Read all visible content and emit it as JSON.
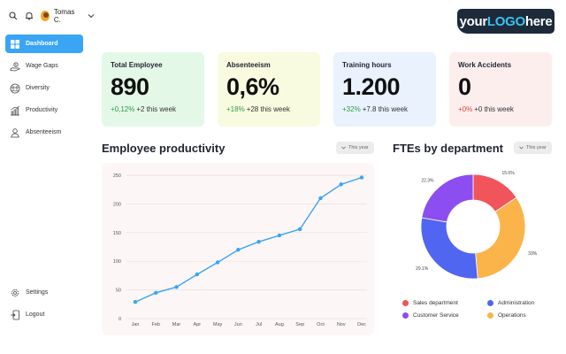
{
  "user": {
    "name": "Tomas C."
  },
  "logo": {
    "part1": "your",
    "part2": "LOGO",
    "part3": "here"
  },
  "sidebar": {
    "items": [
      {
        "label": "Dashboard",
        "icon": "dashboard-icon",
        "active": true
      },
      {
        "label": "Wage Gaps",
        "icon": "wage-gaps-icon",
        "active": false
      },
      {
        "label": "Diversity",
        "icon": "diversity-icon",
        "active": false
      },
      {
        "label": "Productivity",
        "icon": "productivity-icon",
        "active": false
      },
      {
        "label": "Absenteeism",
        "icon": "absenteeism-icon",
        "active": false
      }
    ],
    "bottom": [
      {
        "label": "Settings",
        "icon": "settings-icon"
      },
      {
        "label": "Logout",
        "icon": "logout-icon"
      }
    ]
  },
  "cards": [
    {
      "title": "Total Employee",
      "value": "890",
      "pct": "+0,12%",
      "delta": "+2 this week",
      "bg": "#e4f8e8",
      "trend": "pos"
    },
    {
      "title": "Absenteeism",
      "value": "0,6%",
      "pct": "+18%",
      "delta": "+28 this week",
      "bg": "#f8fbdf",
      "trend": "pos"
    },
    {
      "title": "Training hours",
      "value": "1.200",
      "pct": "+32%",
      "delta": "+7.8 this week",
      "bg": "#e9f2fd",
      "trend": "pos"
    },
    {
      "title": "Work Accidents",
      "value": "0",
      "pct": "+0%",
      "delta": "+0 this week",
      "bg": "#fdeeee",
      "trend": "neg"
    }
  ],
  "productivity": {
    "title": "Employee productivity",
    "filter": "This year"
  },
  "fte": {
    "title": "FTEs by department",
    "filter": "This year"
  },
  "chart_data": [
    {
      "type": "line",
      "title": "Employee productivity",
      "categories": [
        "Jan",
        "Feb",
        "Mar",
        "Apr",
        "May",
        "Jun",
        "Jul",
        "Aug",
        "Sep",
        "Oct",
        "Nov",
        "Dec"
      ],
      "values": [
        29,
        45,
        55,
        77,
        98,
        120,
        134,
        145,
        156,
        210,
        234,
        246
      ],
      "yticks": [
        0,
        50,
        100,
        150,
        200,
        250
      ],
      "ylim": [
        0,
        250
      ],
      "color": "#3aa4f5",
      "grid": true
    },
    {
      "type": "pie",
      "title": "FTEs by department",
      "slices": [
        {
          "name": "Sales department",
          "value": 15.6,
          "label": "15.6%",
          "color": "#f2545b"
        },
        {
          "name": "Operations",
          "value": 33,
          "label": "33%",
          "color": "#fbb44a"
        },
        {
          "name": "Administration",
          "value": 29.1,
          "label": "29.1%",
          "color": "#5065f0"
        },
        {
          "name": "Customer Service",
          "value": 22.3,
          "label": "22.3%",
          "color": "#8c4ef0"
        }
      ],
      "legend": [
        {
          "name": "Sales department",
          "color": "#f2545b"
        },
        {
          "name": "Administration",
          "color": "#5065f0"
        },
        {
          "name": "Customer Service",
          "color": "#8c4ef0"
        },
        {
          "name": "Operations",
          "color": "#fbb44a"
        }
      ],
      "legend_position": "bottom"
    }
  ]
}
